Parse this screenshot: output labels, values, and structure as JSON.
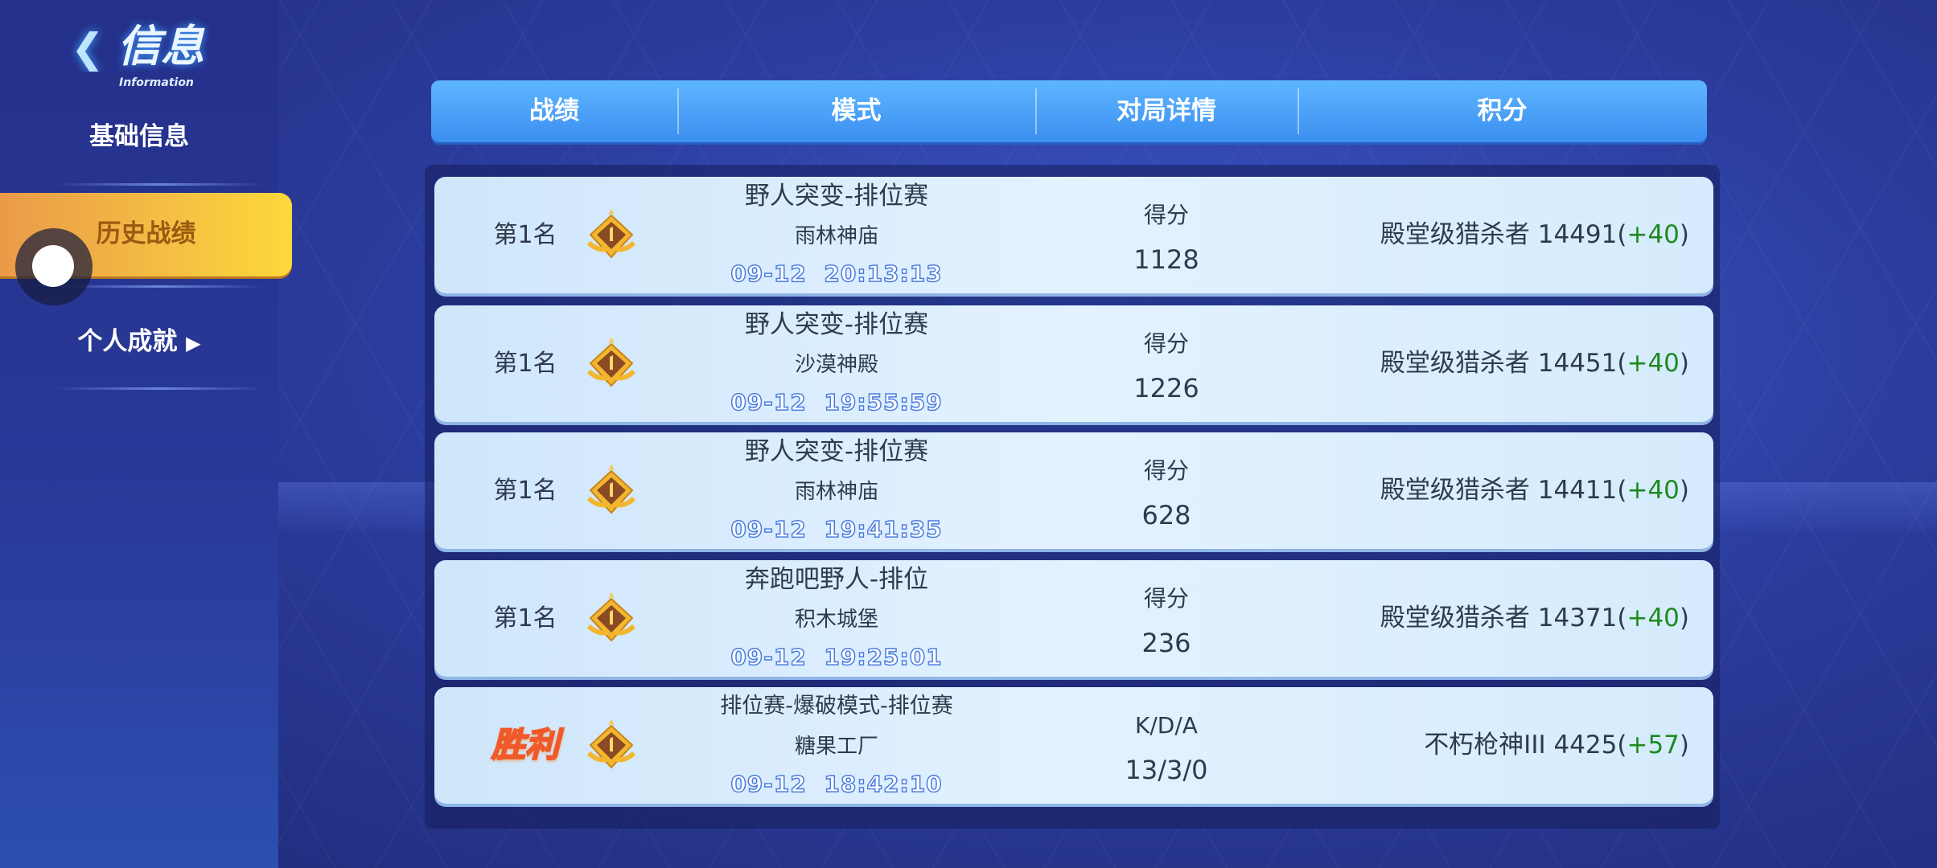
{
  "logo": {
    "title": "信息",
    "subtitle": "Information"
  },
  "sidebar": {
    "items": [
      {
        "label": "基础信息"
      },
      {
        "label": "历史战绩",
        "active": true
      },
      {
        "label": "个人成就",
        "arrow": "▶"
      }
    ]
  },
  "header": {
    "columns": [
      "战绩",
      "模式",
      "对局详情",
      "积分"
    ]
  },
  "colors": {
    "active_tab": "#f5c043",
    "header": "#4aa2f8",
    "delta": "#1f8a1f",
    "date": "#4a7be0"
  },
  "rows": [
    {
      "rank": "第1名",
      "medal": "gold-medal-1",
      "mode": "野人突变-排位赛",
      "map": "雨林神庙",
      "datetime": "09-12  20:13:13",
      "stat_label": "得分",
      "stat_value": "1128",
      "points": "殿堂级猎杀者 14491(",
      "delta": "+40",
      ")": ")"
    },
    {
      "rank": "第1名",
      "medal": "gold-medal-1",
      "mode": "野人突变-排位赛",
      "map": "沙漠神殿",
      "datetime": "09-12  19:55:59",
      "stat_label": "得分",
      "stat_value": "1226",
      "points": "殿堂级猎杀者 14451(",
      "delta": "+40"
    },
    {
      "rank": "第1名",
      "medal": "gold-medal-1",
      "mode": "野人突变-排位赛",
      "map": "雨林神庙",
      "datetime": "09-12  19:41:35",
      "stat_label": "得分",
      "stat_value": "628",
      "points": "殿堂级猎杀者 14411(",
      "delta": "+40"
    },
    {
      "rank": "第1名",
      "medal": "gold-medal-1",
      "mode": "奔跑吧野人-排位",
      "map": "积木城堡",
      "datetime": "09-12  19:25:01",
      "stat_label": "得分",
      "stat_value": "236",
      "points": "殿堂级猎杀者 14371(",
      "delta": "+40"
    },
    {
      "rank": "胜利",
      "medal": "gold-medal-1",
      "mode": "排位赛-爆破模式-排位赛",
      "map": "糖果工厂",
      "datetime": "09-12  18:42:10",
      "stat_label": "K/D/A",
      "stat_value": "13/3/0",
      "points": "不朽枪神III 4425(",
      "delta": "+57"
    }
  ],
  "close_paren": ")"
}
